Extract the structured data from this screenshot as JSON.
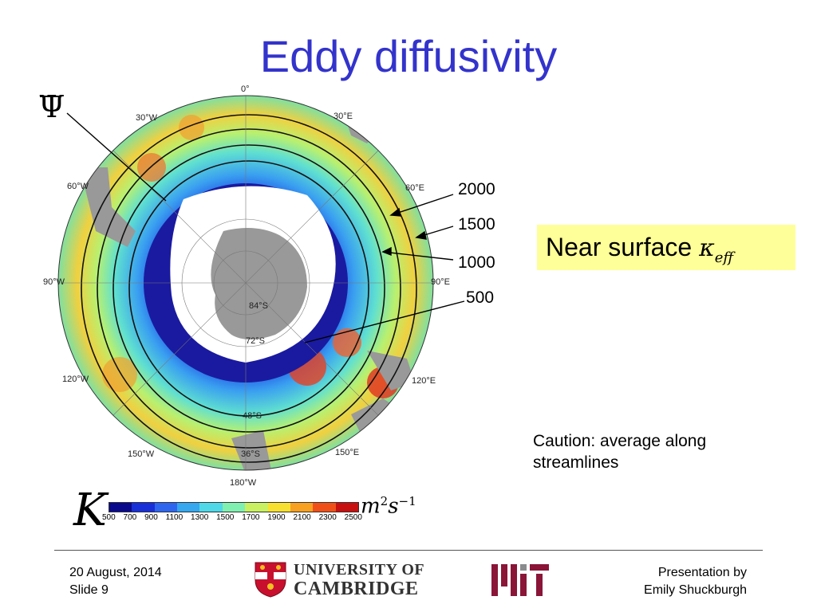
{
  "slide": {
    "title": "Eddy diffusivity",
    "psi_symbol": "Ψ",
    "contours": [
      "2000",
      "1500",
      "1000",
      "500"
    ],
    "highlight": {
      "text": "Near surface ",
      "kappa": "κ",
      "sub": "eff",
      "bg": "#ffff99"
    },
    "caution": [
      "Caution: average along",
      "streamlines"
    ],
    "map": {
      "longitudes": [
        "0°",
        "30°E",
        "60°E",
        "90°E",
        "120°E",
        "150°E",
        "180°W",
        "150°W",
        "120°W",
        "90°W",
        "60°W",
        "30°W"
      ],
      "latitudes": [
        "84°S",
        "72°S",
        "48°S",
        "36°S"
      ]
    },
    "colorbar": {
      "symbol": "K",
      "units_base": "m",
      "units_exp1": "2",
      "units_s": "s",
      "units_exp2": "−1",
      "ticks": [
        "500",
        "700",
        "900",
        "1100",
        "1300",
        "1500",
        "1700",
        "1900",
        "2100",
        "2300",
        "2500"
      ],
      "colors": [
        "#0a0a8c",
        "#1830d8",
        "#2f66f0",
        "#35a8f0",
        "#4fd8e8",
        "#80f0b0",
        "#c8f060",
        "#f8e030",
        "#f8a020",
        "#f05018",
        "#c81010"
      ]
    }
  },
  "footer": {
    "date": "20 August, 2014",
    "slide_label": "Slide 9",
    "presenter_line1": "Presentation by",
    "presenter_line2": "Emily Shuckburgh",
    "cambridge_line1": "UNIVERSITY OF",
    "cambridge_line2": "CAMBRIDGE"
  }
}
